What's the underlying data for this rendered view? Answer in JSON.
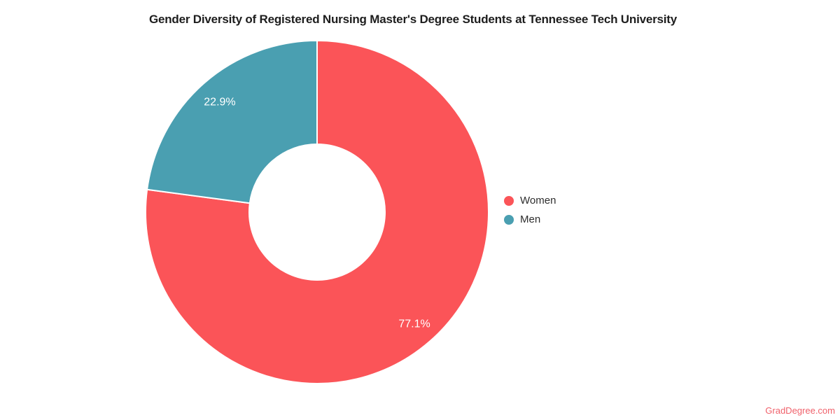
{
  "chart_data": {
    "type": "pie",
    "donut": true,
    "title": "Gender Diversity of Registered Nursing Master's Degree Students at Tennessee Tech University",
    "slices": [
      {
        "label": "Women",
        "value": 77.1,
        "display": "77.1%",
        "color": "#FB5458"
      },
      {
        "label": "Men",
        "value": 22.9,
        "display": "22.9%",
        "color": "#4A9FB1"
      }
    ],
    "start_angle_deg": 0,
    "direction": "clockwise",
    "legend_position": "right",
    "label_text_color": "#FFFFFF"
  },
  "watermark": {
    "text": "GradDegree.com",
    "color": "#F0616B"
  },
  "colors": {
    "background": "#FFFFFF",
    "title_text": "#1D1D1D",
    "legend_text": "#2E2E2E",
    "slice_divider": "#FFFFFF"
  }
}
